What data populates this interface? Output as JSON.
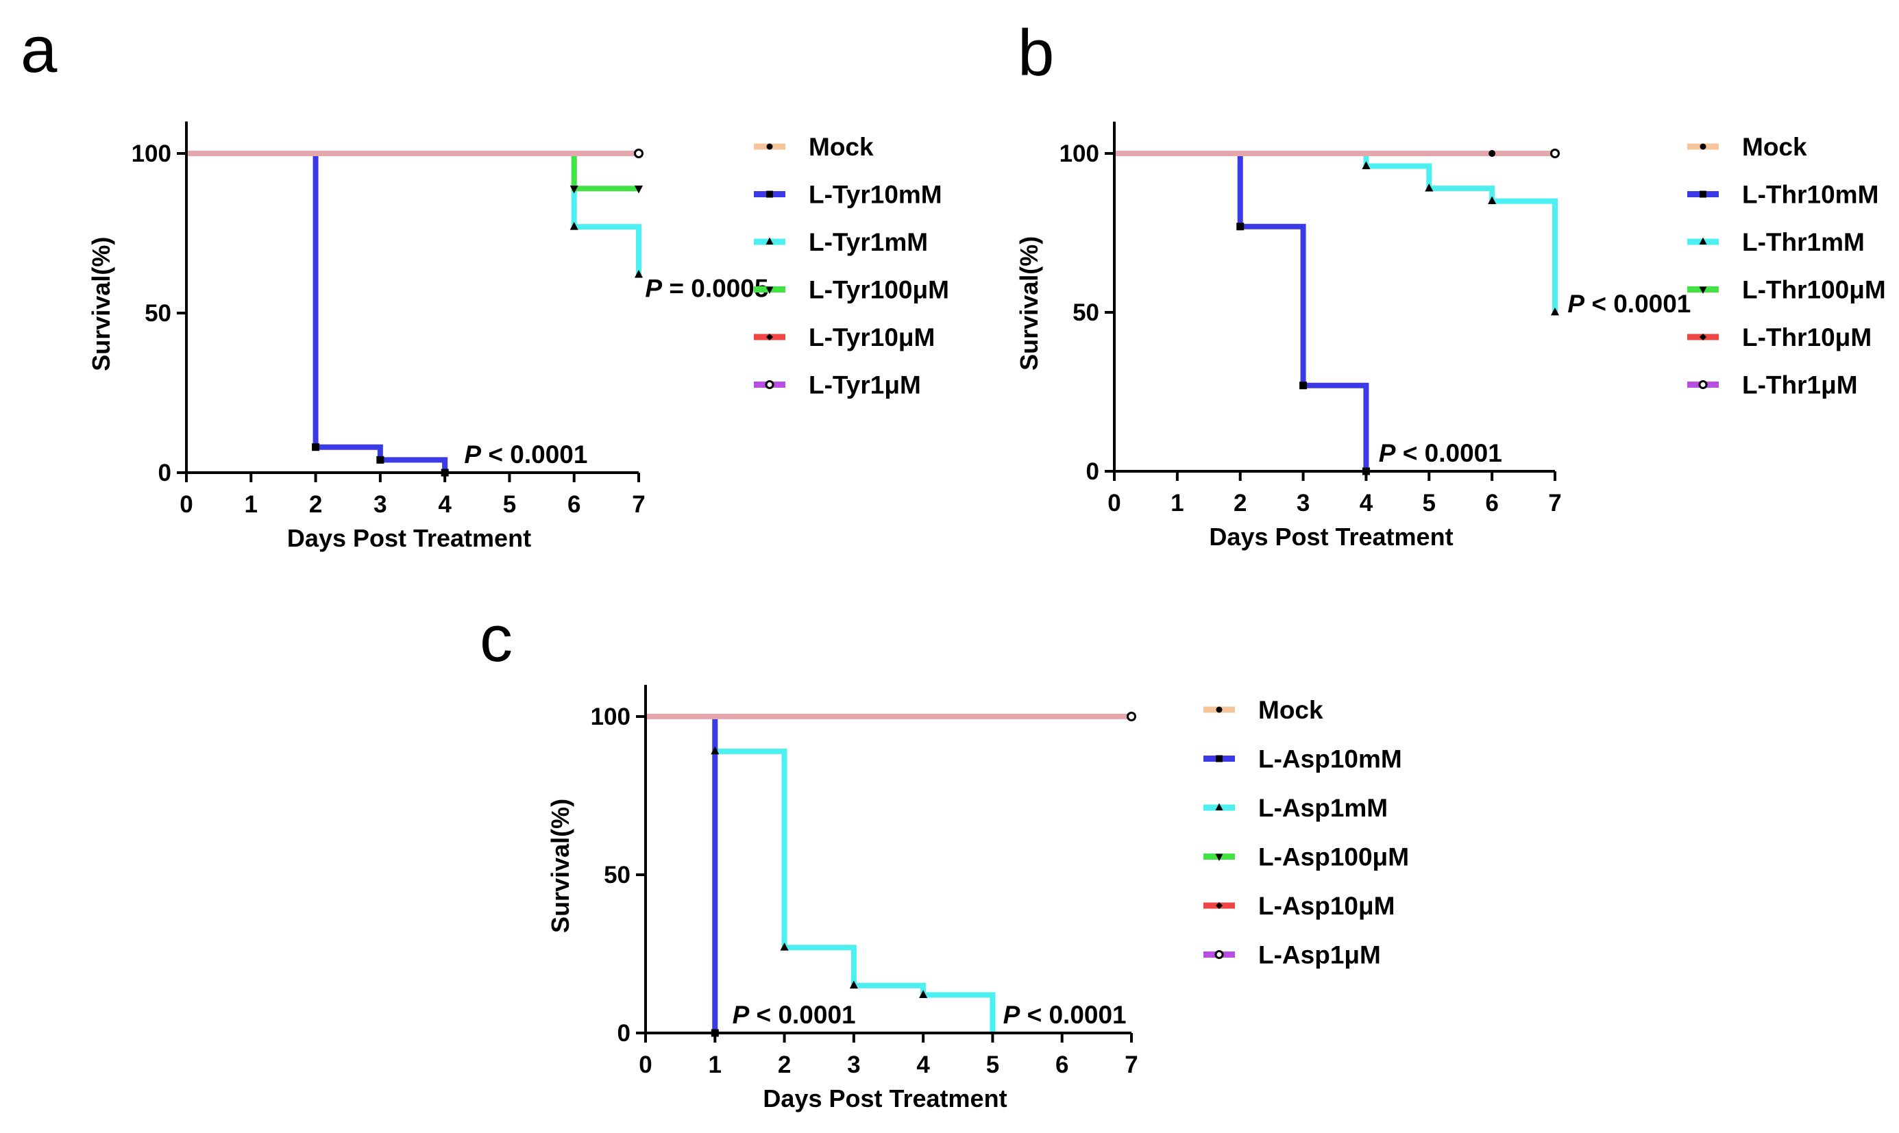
{
  "colors": {
    "Mock": "#f6c49a",
    "10mM": "#3a3ae8",
    "1mM": "#4cf0f0",
    "100uM": "#42e342",
    "10uM": "#f04545",
    "1uM": "#b84fe2"
  },
  "chart_data": [
    {
      "type": "line",
      "panel": "a",
      "xlabel": "Days Post Treatment",
      "ylabel": "Survival(%)",
      "xlim": [
        0,
        7
      ],
      "ylim": [
        0,
        110
      ],
      "xticks": [
        "0",
        "1",
        "2",
        "3",
        "4",
        "5",
        "6",
        "7"
      ],
      "yticks": [
        "0",
        "50",
        "100"
      ],
      "series": [
        {
          "name": "Mock",
          "marker": "circle-sm",
          "steps": [
            [
              0,
              100
            ],
            [
              7,
              100
            ]
          ],
          "censor": [
            [
              7,
              100
            ]
          ]
        },
        {
          "name": "L-Tyr10mM",
          "marker": "square",
          "steps": [
            [
              0,
              100
            ],
            [
              2,
              8
            ],
            [
              3,
              4
            ],
            [
              4,
              0
            ]
          ],
          "censor": [
            [
              2,
              8
            ],
            [
              3,
              4
            ],
            [
              4,
              0
            ]
          ]
        },
        {
          "name": "L-Tyr1mM",
          "marker": "triangle-up",
          "steps": [
            [
              0,
              100
            ],
            [
              6,
              77
            ],
            [
              7,
              62
            ]
          ],
          "censor": [
            [
              6,
              77
            ],
            [
              7,
              62
            ]
          ]
        },
        {
          "name": "L-Tyr100μM",
          "marker": "triangle-down",
          "steps": [
            [
              0,
              100
            ],
            [
              6,
              89
            ],
            [
              7,
              89
            ]
          ],
          "censor": [
            [
              6,
              89
            ],
            [
              7,
              89
            ]
          ]
        },
        {
          "name": "L-Tyr10μM",
          "marker": "diamond",
          "steps": [
            [
              0,
              100
            ],
            [
              7,
              100
            ]
          ],
          "censor": [
            [
              7,
              100
            ]
          ]
        },
        {
          "name": "L-Tyr1μM",
          "marker": "circle-open",
          "steps": [
            [
              0,
              100
            ],
            [
              7,
              100
            ]
          ],
          "censor": [
            [
              7,
              100
            ]
          ]
        }
      ],
      "annotations": [
        {
          "prefix": "P",
          "text": " < 0.0001",
          "x": 4.3,
          "y": 3
        },
        {
          "prefix": "P",
          "text": " = 0.0005",
          "x": 7.1,
          "y": 55
        }
      ]
    },
    {
      "type": "line",
      "panel": "b",
      "xlabel": "Days Post Treatment",
      "ylabel": "Survival(%)",
      "xlim": [
        0,
        7
      ],
      "ylim": [
        0,
        110
      ],
      "xticks": [
        "0",
        "1",
        "2",
        "3",
        "4",
        "5",
        "6",
        "7"
      ],
      "yticks": [
        "0",
        "50",
        "100"
      ],
      "series": [
        {
          "name": "Mock",
          "marker": "circle-sm",
          "steps": [
            [
              0,
              100
            ],
            [
              7,
              100
            ]
          ],
          "censor": [
            [
              6,
              100
            ],
            [
              7,
              100
            ]
          ]
        },
        {
          "name": "L-Thr10mM",
          "marker": "square",
          "steps": [
            [
              0,
              100
            ],
            [
              2,
              77
            ],
            [
              3,
              27
            ],
            [
              4,
              0
            ]
          ],
          "censor": [
            [
              2,
              77
            ],
            [
              3,
              27
            ],
            [
              4,
              0
            ]
          ]
        },
        {
          "name": "L-Thr1mM",
          "marker": "triangle-up",
          "steps": [
            [
              0,
              100
            ],
            [
              4,
              96
            ],
            [
              5,
              89
            ],
            [
              6,
              85
            ],
            [
              7,
              50
            ]
          ],
          "censor": [
            [
              4,
              96
            ],
            [
              5,
              89
            ],
            [
              6,
              85
            ],
            [
              7,
              50
            ]
          ]
        },
        {
          "name": "L-Thr100μM",
          "marker": "triangle-down",
          "steps": [
            [
              0,
              100
            ],
            [
              7,
              100
            ]
          ],
          "censor": [
            [
              7,
              100
            ]
          ]
        },
        {
          "name": "L-Thr10μM",
          "marker": "diamond",
          "steps": [
            [
              0,
              100
            ],
            [
              7,
              100
            ]
          ],
          "censor": [
            [
              7,
              100
            ]
          ]
        },
        {
          "name": "L-Thr1μM",
          "marker": "circle-open",
          "steps": [
            [
              0,
              100
            ],
            [
              7,
              100
            ]
          ],
          "censor": [
            [
              7,
              100
            ]
          ]
        }
      ],
      "annotations": [
        {
          "prefix": "P",
          "text": " < 0.0001",
          "x": 4.2,
          "y": 3
        },
        {
          "prefix": "P",
          "text": " < 0.0001",
          "x": 7.2,
          "y": 50
        }
      ]
    },
    {
      "type": "line",
      "panel": "c",
      "xlabel": "Days Post Treatment",
      "ylabel": "Survival(%)",
      "xlim": [
        0,
        7
      ],
      "ylim": [
        0,
        110
      ],
      "xticks": [
        "0",
        "1",
        "2",
        "3",
        "4",
        "5",
        "6",
        "7"
      ],
      "yticks": [
        "0",
        "50",
        "100"
      ],
      "series": [
        {
          "name": "Mock",
          "marker": "circle-sm",
          "steps": [
            [
              0,
              100
            ],
            [
              7,
              100
            ]
          ],
          "censor": [
            [
              7,
              100
            ]
          ]
        },
        {
          "name": "L-Asp10mM",
          "marker": "square",
          "steps": [
            [
              0,
              100
            ],
            [
              1,
              0
            ]
          ],
          "censor": [
            [
              1,
              0
            ]
          ]
        },
        {
          "name": "L-Asp1mM",
          "marker": "triangle-up",
          "steps": [
            [
              0,
              100
            ],
            [
              1,
              89
            ],
            [
              2,
              27
            ],
            [
              3,
              15
            ],
            [
              4,
              12
            ],
            [
              5,
              0
            ]
          ],
          "censor": [
            [
              1,
              89
            ],
            [
              2,
              27
            ],
            [
              3,
              15
            ],
            [
              4,
              12
            ]
          ]
        },
        {
          "name": "L-Asp100μM",
          "marker": "triangle-down",
          "steps": [
            [
              0,
              100
            ],
            [
              7,
              100
            ]
          ],
          "censor": [
            [
              7,
              100
            ]
          ]
        },
        {
          "name": "L-Asp10μM",
          "marker": "diamond",
          "steps": [
            [
              0,
              100
            ],
            [
              7,
              100
            ]
          ],
          "censor": [
            [
              7,
              100
            ]
          ]
        },
        {
          "name": "L-Asp1μM",
          "marker": "circle-open",
          "steps": [
            [
              0,
              100
            ],
            [
              7,
              100
            ]
          ],
          "censor": [
            [
              7,
              100
            ]
          ]
        }
      ],
      "annotations": [
        {
          "prefix": "P",
          "text": " < 0.0001",
          "x": 1.25,
          "y": 3
        },
        {
          "prefix": "P",
          "text": " < 0.0001",
          "x": 5.15,
          "y": 3
        }
      ]
    }
  ]
}
